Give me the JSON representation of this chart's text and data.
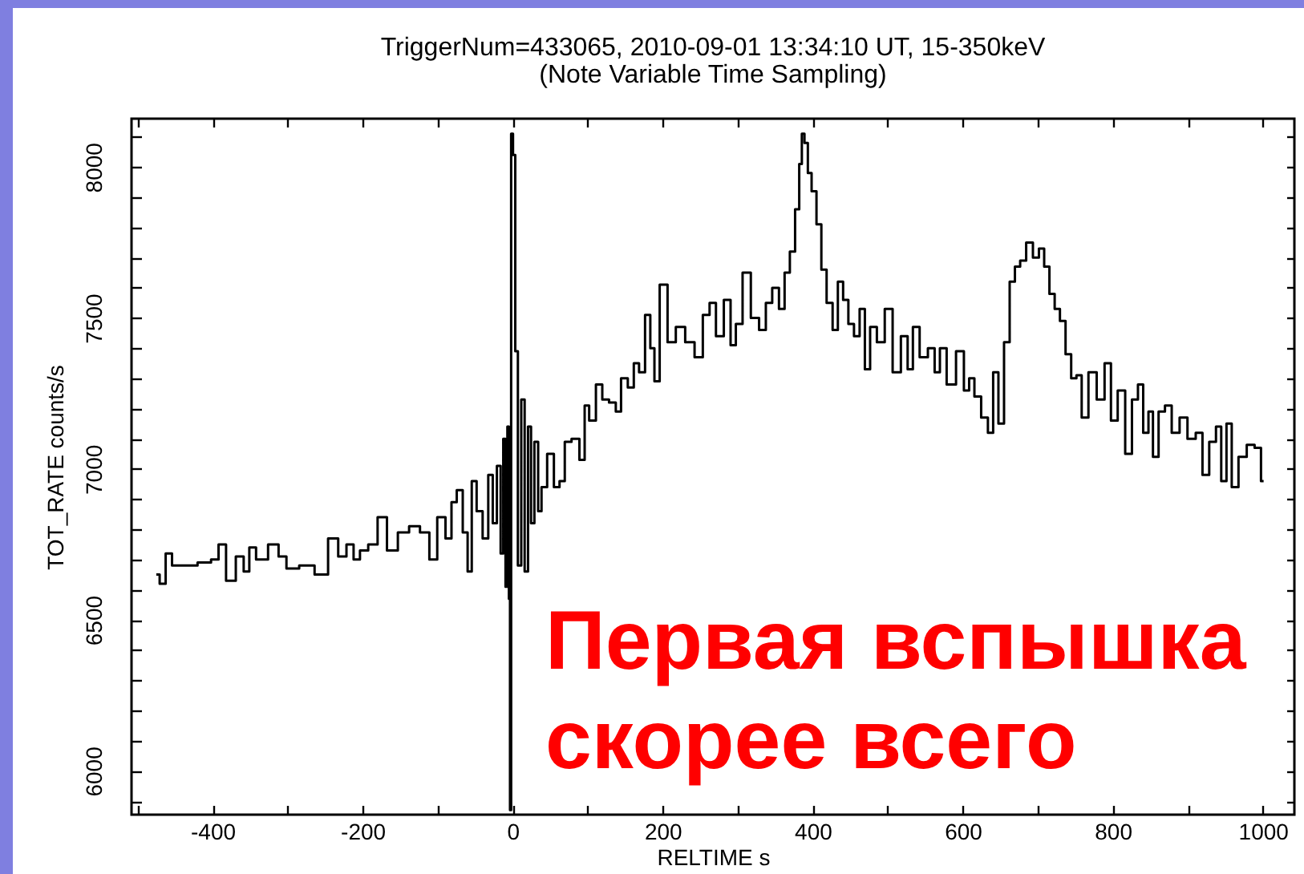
{
  "chart_data": {
    "type": "step",
    "title": "TriggerNum=433065, 2010-09-01 13:34:10 UT, 15-350keV",
    "subtitle": "(Note Variable Time Sampling)",
    "xlabel": "RELTIME s",
    "ylabel": "TOT_RATE counts/s",
    "annotations": [
      "Первая вспышка",
      "скорее всего"
    ],
    "color": "#000000",
    "x": [
      -475,
      -466,
      -459,
      -449,
      -431,
      -409,
      -395,
      -389,
      -375,
      -363,
      -354,
      -348,
      -336,
      -316,
      -308,
      -295,
      -274,
      -254,
      -238,
      -227,
      -216,
      -208,
      -199,
      -186,
      -174,
      -161,
      -145,
      -131,
      -116,
      -106,
      -95,
      -84,
      -79,
      -70,
      -63,
      -57,
      -52,
      -44,
      -36,
      -29,
      -24,
      -18,
      -14,
      -11,
      -8,
      -6,
      -4,
      -3,
      -1,
      2,
      5,
      9,
      14,
      18,
      23,
      26,
      32,
      36,
      41,
      51,
      59,
      66,
      73,
      84,
      94,
      98,
      106,
      116,
      123,
      134,
      141,
      148,
      159,
      164,
      173,
      180,
      187,
      191,
      201,
      212,
      223,
      237,
      248,
      259,
      266,
      276,
      287,
      294,
      301,
      312,
      323,
      334,
      341,
      351,
      359,
      366,
      373,
      380,
      384,
      387,
      391,
      396,
      401,
      409,
      414,
      423,
      430,
      437,
      444,
      451,
      459,
      466,
      473,
      480,
      491,
      501,
      512,
      523,
      530,
      537,
      548,
      559,
      566,
      573,
      584,
      598,
      605,
      612,
      619,
      630,
      637,
      644,
      651,
      659,
      666,
      673,
      680,
      689,
      698,
      705,
      712,
      719,
      726,
      733,
      741,
      748,
      755,
      762,
      773,
      784,
      794,
      801,
      812,
      821,
      830,
      837,
      844,
      851,
      856,
      866,
      873,
      884,
      894,
      905,
      916,
      923,
      934,
      941,
      948,
      955,
      962,
      973,
      984,
      994,
      1001
    ],
    "values": [
      6650,
      6620,
      6720,
      6680,
      6680,
      6690,
      6700,
      6750,
      6630,
      6710,
      6660,
      6740,
      6700,
      6750,
      6710,
      6670,
      6680,
      6650,
      6770,
      6710,
      6750,
      6700,
      6730,
      6750,
      6840,
      6730,
      6790,
      6810,
      6790,
      6700,
      6840,
      6770,
      6890,
      6930,
      6790,
      6660,
      6960,
      6860,
      6770,
      6980,
      6820,
      7010,
      6720,
      7100,
      6610,
      7140,
      6570,
      5870,
      8110,
      8040,
      7390,
      6680,
      7230,
      6660,
      7140,
      6820,
      7090,
      6860,
      6940,
      7050,
      6940,
      6960,
      7090,
      7100,
      7030,
      7210,
      7160,
      7280,
      7230,
      7220,
      7190,
      7300,
      7270,
      7350,
      7320,
      7510,
      7400,
      7290,
      7610,
      7420,
      7470,
      7420,
      7370,
      7510,
      7550,
      7440,
      7560,
      7410,
      7480,
      7650,
      7500,
      7460,
      7550,
      7600,
      7530,
      7650,
      7720,
      7860,
      8010,
      8110,
      8080,
      7980,
      7920,
      7810,
      7660,
      7550,
      7460,
      7620,
      7560,
      7480,
      7440,
      7530,
      7330,
      7470,
      7420,
      7530,
      7320,
      7440,
      7330,
      7470,
      7370,
      7400,
      7320,
      7400,
      7280,
      7390,
      7260,
      7300,
      7240,
      7170,
      7120,
      7320,
      7150,
      7420,
      7620,
      7670,
      7690,
      7750,
      7700,
      7730,
      7670,
      7580,
      7530,
      7490,
      7380,
      7300,
      7310,
      7170,
      7320,
      7230,
      7350,
      7160,
      7260,
      7050,
      7230,
      7280,
      7120,
      7190,
      7040,
      7190,
      7210,
      7120,
      7170,
      7100,
      7120,
      6980,
      7090,
      7140,
      6960,
      7150,
      6940,
      7040,
      7080,
      7070,
      6960
    ],
    "xlim": [
      -508,
      1042
    ],
    "xticks": [
      {
        "value": -500,
        "label": null
      },
      -400,
      {
        "value": -300,
        "label": null
      },
      -200,
      {
        "value": -100,
        "label": null
      },
      0,
      {
        "value": 100,
        "label": null
      },
      200,
      {
        "value": 300,
        "label": null
      },
      400,
      {
        "value": 500,
        "label": null
      },
      600,
      {
        "value": 700,
        "label": null
      },
      800,
      {
        "value": 900,
        "label": null
      },
      1000
    ],
    "ylim": [
      5855,
      8160
    ],
    "yticks": [
      {
        "value": 5900,
        "label": null
      },
      6000,
      {
        "value": 6100,
        "label": null
      },
      {
        "value": 6200,
        "label": null
      },
      {
        "value": 6300,
        "label": null
      },
      {
        "value": 6400,
        "label": null
      },
      6500,
      {
        "value": 6600,
        "label": null
      },
      {
        "value": 6700,
        "label": null
      },
      {
        "value": 6800,
        "label": null
      },
      {
        "value": 6900,
        "label": null
      },
      7000,
      {
        "value": 7100,
        "label": null
      },
      {
        "value": 7200,
        "label": null
      },
      {
        "value": 7300,
        "label": null
      },
      {
        "value": 7400,
        "label": null
      },
      7500,
      {
        "value": 7600,
        "label": null
      },
      {
        "value": 7700,
        "label": null
      },
      {
        "value": 7800,
        "label": null
      },
      {
        "value": 7900,
        "label": null
      },
      8000,
      {
        "value": 8100,
        "label": null
      }
    ]
  }
}
